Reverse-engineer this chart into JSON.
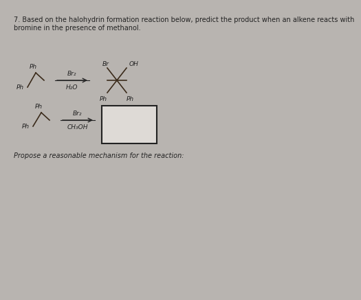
{
  "background_color": "#b8b4b0",
  "title_line1": "7. Based on the halohydrin formation reaction below, predict the product when an alkene reacts with",
  "title_line2": "bromine in the presence of methanol.",
  "title_fontsize": 7.0,
  "reaction1": {
    "reagent_top": "Br₂",
    "reagent_bottom": "H₂O",
    "product_br": "Br",
    "product_oh": "OH",
    "product_ph1": "Ph",
    "product_ph2": "Ph"
  },
  "reaction2": {
    "reagent_top": "Br₂",
    "reagent_bottom": "CH₃OH"
  },
  "ph_label": "Ph",
  "box_facecolor": "#dedad6",
  "box_edgecolor": "#222222",
  "mechanism_text": "Propose a reasonable mechanism for the reaction:",
  "mechanism_fontsize": 7.0,
  "line_color": "#3a2a1a",
  "arrow_color": "#222222",
  "text_color": "#222222",
  "font_size_chem": 6.5
}
